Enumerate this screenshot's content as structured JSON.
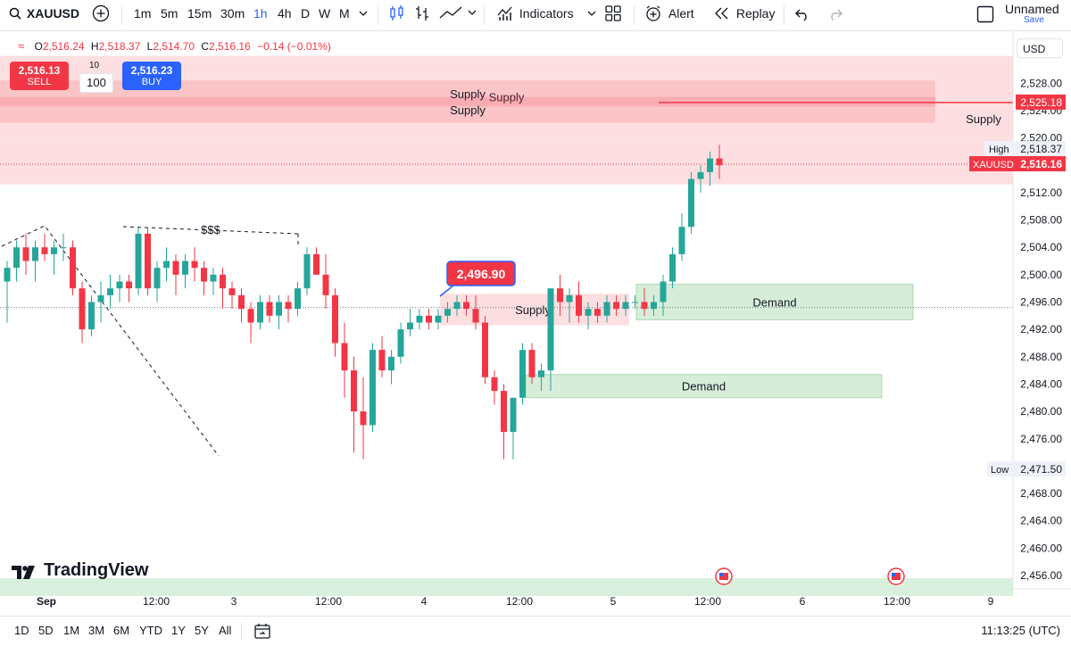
{
  "toolbar": {
    "symbol": "XAUUSD",
    "intervals": [
      "1m",
      "5m",
      "15m",
      "30m",
      "1h",
      "4h",
      "D",
      "W",
      "M"
    ],
    "active_interval": "1h",
    "indicators_label": "Indicators",
    "alert_label": "Alert",
    "replay_label": "Replay",
    "layout_name": "Unnamed",
    "save_label": "Save"
  },
  "legend": {
    "o_label": "O",
    "o": "2,516.24",
    "h_label": "H",
    "h": "2,518.37",
    "l_label": "L",
    "l": "2,514.70",
    "c_label": "C",
    "c": "2,516.16",
    "change": "−0.14 (−0.01%)"
  },
  "currency": "USD",
  "trade": {
    "sell_price": "2,516.13",
    "sell_label": "SELL",
    "buy_price": "2,516.23",
    "buy_label": "BUY",
    "qty": "100",
    "qty_top": "10"
  },
  "brand": "TradingView",
  "bottom": {
    "ranges": [
      "1D",
      "5D",
      "1M",
      "3M",
      "6M",
      "YTD",
      "1Y",
      "5Y",
      "All"
    ],
    "clock": "11:13:25 (UTC)"
  },
  "colors": {
    "up": "#26a69a",
    "down": "#f23645",
    "supply": "#f4b6bb",
    "demand": "#cde9cf",
    "accent": "#2962ff"
  },
  "chart_data": {
    "type": "candlestick",
    "symbol": "XAUUSD",
    "timeframe": "1h",
    "ylim": [
      2452,
      2532
    ],
    "yticks": [
      2456,
      2460,
      2464,
      2468,
      2472,
      2476,
      2480,
      2484,
      2488,
      2492,
      2496,
      2500,
      2504,
      2508,
      2512,
      2516,
      2520,
      2524,
      2528
    ],
    "ytick_labels": [
      "2,456.00",
      "2,460.00",
      "2,464.00",
      "2,468.00",
      "2,472.00",
      "2,476.00",
      "2,480.00",
      "2,484.00",
      "2,488.00",
      "2,492.00",
      "2,496.00",
      "2,500.00",
      "2,504.00",
      "2,508.00",
      "2,512.00",
      "2,516.00",
      "2,520.00",
      "2,524.00",
      "2,528.00"
    ],
    "xticks": [
      {
        "i": 5,
        "label": "Sep"
      },
      {
        "i": 25,
        "label": "12:00"
      },
      {
        "i": 35,
        "label": "3"
      },
      {
        "i": 45,
        "label": "12:00"
      },
      {
        "i": 55,
        "label": "4"
      },
      {
        "i": 65,
        "label": "12:00"
      },
      {
        "i": 75,
        "label": "5"
      },
      {
        "i": 85,
        "label": "12:00"
      },
      {
        "i": 95,
        "label": "6"
      },
      {
        "i": 105,
        "label": "12:00"
      },
      {
        "i": 115,
        "label": "9"
      }
    ],
    "candles": [
      [
        2499,
        2502,
        2493,
        2501
      ],
      [
        2501,
        2505,
        2499,
        2504
      ],
      [
        2504,
        2506,
        2500,
        2502
      ],
      [
        2502,
        2505,
        2499,
        2504
      ],
      [
        2504,
        2506,
        2502,
        2503
      ],
      [
        2503,
        2505,
        2500,
        2504
      ],
      [
        2504,
        2506,
        2502,
        2504
      ],
      [
        2504,
        2505,
        2497,
        2498
      ],
      [
        2498,
        2499,
        2490,
        2492
      ],
      [
        2492,
        2497,
        2491,
        2496
      ],
      [
        2496,
        2499,
        2493,
        2497
      ],
      [
        2497,
        2500,
        2495,
        2498
      ],
      [
        2498,
        2500,
        2496,
        2499
      ],
      [
        2499,
        2500,
        2496,
        2498
      ],
      [
        2498,
        2507,
        2497,
        2506
      ],
      [
        2506,
        2507,
        2497,
        2498
      ],
      [
        2498,
        2502,
        2496,
        2501
      ],
      [
        2501,
        2504,
        2499,
        2502
      ],
      [
        2502,
        2503,
        2497,
        2500
      ],
      [
        2500,
        2503,
        2498,
        2502
      ],
      [
        2502,
        2504,
        2499,
        2501
      ],
      [
        2501,
        2502,
        2497,
        2499
      ],
      [
        2499,
        2501,
        2497,
        2500
      ],
      [
        2500,
        2501,
        2495,
        2498
      ],
      [
        2498,
        2499,
        2495,
        2497
      ],
      [
        2497,
        2498,
        2493,
        2495
      ],
      [
        2495,
        2496,
        2490,
        2493
      ],
      [
        2493,
        2497,
        2492,
        2496
      ],
      [
        2496,
        2497,
        2493,
        2494
      ],
      [
        2494,
        2497,
        2492,
        2496
      ],
      [
        2496,
        2497,
        2493,
        2495
      ],
      [
        2495,
        2499,
        2494,
        2498
      ],
      [
        2498,
        2504,
        2497,
        2503
      ],
      [
        2503,
        2504,
        2500,
        2500
      ],
      [
        2500,
        2503,
        2495,
        2497
      ],
      [
        2497,
        2498,
        2488,
        2490
      ],
      [
        2490,
        2493,
        2482,
        2486
      ],
      [
        2486,
        2488,
        2474,
        2480
      ],
      [
        2480,
        2485,
        2473,
        2478
      ],
      [
        2478,
        2490,
        2477,
        2489
      ],
      [
        2489,
        2491,
        2485,
        2486
      ],
      [
        2486,
        2489,
        2484,
        2488
      ],
      [
        2488,
        2493,
        2487,
        2492
      ],
      [
        2492,
        2495,
        2491,
        2493
      ],
      [
        2493,
        2495,
        2492,
        2494
      ],
      [
        2494,
        2495,
        2492,
        2493
      ],
      [
        2493,
        2495,
        2492,
        2494
      ],
      [
        2494,
        2496,
        2493,
        2495
      ],
      [
        2495,
        2497,
        2494,
        2496
      ],
      [
        2496,
        2497,
        2494,
        2495
      ],
      [
        2495,
        2497,
        2492,
        2493
      ],
      [
        2493,
        2494,
        2484,
        2485
      ],
      [
        2485,
        2486,
        2481,
        2483
      ],
      [
        2483,
        2484,
        2473,
        2477
      ],
      [
        2477,
        2482,
        2473,
        2482
      ],
      [
        2482,
        2490,
        2481,
        2489
      ],
      [
        2489,
        2490,
        2484,
        2485
      ],
      [
        2485,
        2487,
        2483,
        2486
      ],
      [
        2486,
        2498,
        2483,
        2498
      ],
      [
        2498,
        2500,
        2494,
        2496
      ],
      [
        2496,
        2498,
        2493,
        2497
      ],
      [
        2497,
        2499,
        2493,
        2494
      ],
      [
        2494,
        2496,
        2492,
        2495
      ],
      [
        2495,
        2496,
        2493,
        2494
      ],
      [
        2494,
        2497,
        2493,
        2496
      ],
      [
        2496,
        2497,
        2494,
        2495
      ],
      [
        2495,
        2497,
        2494,
        2496
      ],
      [
        2496,
        2497,
        2495,
        2496
      ],
      [
        2496,
        2498,
        2494,
        2495
      ],
      [
        2495,
        2497,
        2494,
        2496
      ],
      [
        2496,
        2500,
        2494,
        2499
      ],
      [
        2499,
        2504,
        2498,
        2503
      ],
      [
        2503,
        2509,
        2502,
        2507
      ],
      [
        2507,
        2515,
        2506,
        2514
      ],
      [
        2514,
        2516,
        2512,
        2515
      ],
      [
        2515,
        2518,
        2513,
        2517
      ],
      [
        2517,
        2519,
        2514,
        2516
      ]
    ],
    "zones": [
      {
        "label": "Supply",
        "low": 2520,
        "high": 2532,
        "x0": 0,
        "x1": 1135
      },
      {
        "label": "Supply",
        "low": 2524.6,
        "high": 2528.4,
        "x0": 0,
        "x1": 1048
      },
      {
        "label": "Supply",
        "low": 2522.2,
        "high": 2526,
        "x0": 0,
        "x1": 1048
      },
      {
        "label": "",
        "low": 2513.2,
        "high": 2520,
        "x0": 0,
        "x1": 1135
      },
      {
        "label": "Supply",
        "low": 2492.6,
        "high": 2497.2,
        "x0": 493,
        "x1": 705
      },
      {
        "label": "Demand",
        "low": 2493.4,
        "high": 2498.6,
        "x0": 713,
        "x1": 1023
      },
      {
        "label": "Demand",
        "low": 2482,
        "high": 2485.4,
        "x0": 589,
        "x1": 988
      },
      {
        "label": "",
        "low": 2453,
        "high": 2455.6,
        "x0": 0,
        "x1": 1135
      }
    ],
    "annotations": {
      "liquidity_label": "$$$",
      "callout_price": "2,496.90",
      "last_price": "2,516.16",
      "last_label": "XAUUSD",
      "high_label": "High",
      "high_value": "2,518.37",
      "low_label": "Low",
      "low_value": "2,471.50",
      "line_price": "2,525.18",
      "line_value": 2525.18
    }
  }
}
